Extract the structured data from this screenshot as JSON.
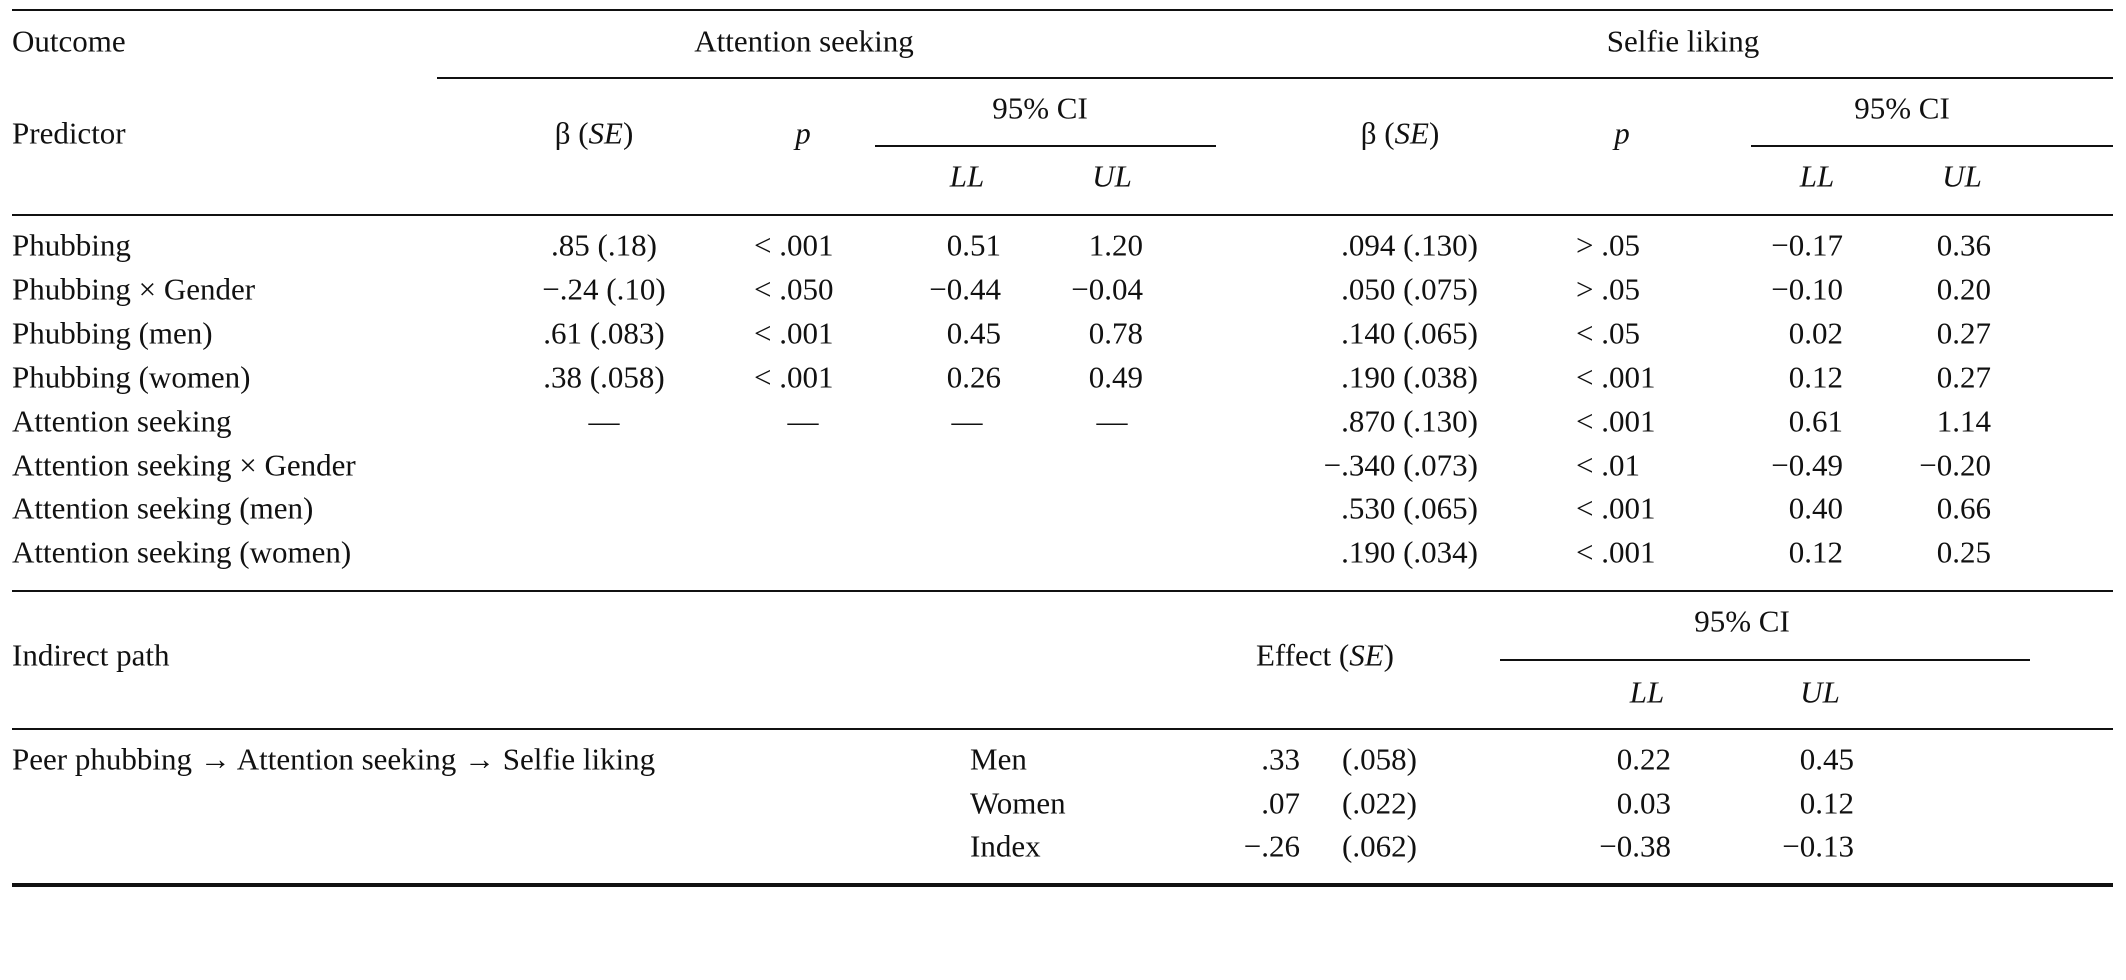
{
  "header": {
    "outcome_label": "Outcome",
    "predictor_label": "Predictor",
    "outcome_1": "Attention seeking",
    "outcome_2": "Selfie liking",
    "beta_label": "β (",
    "se_italic": "SE",
    "close_paren": ")",
    "p_label": "p",
    "ci_label": "95% CI",
    "ll_label": "LL",
    "ul_label": "UL"
  },
  "rows": [
    {
      "predictor": "Phubbing",
      "a_beta": ".85 (.18)",
      "a_p": "< .001",
      "a_ll": "0.51",
      "a_ul": "1.20",
      "s_beta": ".094 (.130)",
      "s_p": "> .05",
      "s_ll": "−0.17",
      "s_ul": "0.36"
    },
    {
      "predictor": "Phubbing × Gender",
      "a_beta": "−.24 (.10)",
      "a_p": "< .050",
      "a_ll": "−0.44",
      "a_ul": "−0.04",
      "s_beta": ".050 (.075)",
      "s_p": "> .05",
      "s_ll": "−0.10",
      "s_ul": "0.20"
    },
    {
      "predictor": "Phubbing (men)",
      "a_beta": ".61 (.083)",
      "a_p": "< .001",
      "a_ll": "0.45",
      "a_ul": "0.78",
      "s_beta": ".140 (.065)",
      "s_p": "< .05",
      "s_ll": "0.02",
      "s_ul": "0.27"
    },
    {
      "predictor": "Phubbing (women)",
      "a_beta": ".38 (.058)",
      "a_p": "< .001",
      "a_ll": "0.26",
      "a_ul": "0.49",
      "s_beta": ".190 (.038)",
      "s_p": "< .001",
      "s_ll": "0.12",
      "s_ul": "0.27"
    },
    {
      "predictor": "Attention seeking",
      "a_beta": "—",
      "a_p": "—",
      "a_ll": "—",
      "a_ul": "—",
      "s_beta": ".870 (.130)",
      "s_p": "< .001",
      "s_ll": "0.61",
      "s_ul": "1.14"
    },
    {
      "predictor": "Attention seeking × Gender",
      "a_beta": "",
      "a_p": "",
      "a_ll": "",
      "a_ul": "",
      "s_beta": "−.340 (.073)",
      "s_p": "< .01",
      "s_ll": "−0.49",
      "s_ul": "−0.20"
    },
    {
      "predictor": "Attention seeking (men)",
      "a_beta": "",
      "a_p": "",
      "a_ll": "",
      "a_ul": "",
      "s_beta": ".530 (.065)",
      "s_p": "< .001",
      "s_ll": "0.40",
      "s_ul": "0.66"
    },
    {
      "predictor": "Attention seeking (women)",
      "a_beta": "",
      "a_p": "",
      "a_ll": "",
      "a_ul": "",
      "s_beta": ".190 (.034)",
      "s_p": "< .001",
      "s_ll": "0.12",
      "s_ul": "0.25"
    }
  ],
  "indirect": {
    "path_label": "Indirect path",
    "effect_label": "Effect (",
    "se_italic": "SE",
    "close_paren": ")",
    "ci_label": "95% CI",
    "ll_label": "LL",
    "ul_label": "UL",
    "path": "Peer phubbing → Attention seeking → Selfie liking",
    "rows": [
      {
        "group": "Men",
        "effect": ".33",
        "se": "(.058)",
        "ll": "0.22",
        "ul": "0.45"
      },
      {
        "group": "Women",
        "effect": ".07",
        "se": "(.022)",
        "ll": "0.03",
        "ul": "0.12"
      },
      {
        "group": "Index",
        "effect": "−.26",
        "se": "(.062)",
        "ll": "−0.38",
        "ul": "−0.13"
      }
    ]
  }
}
